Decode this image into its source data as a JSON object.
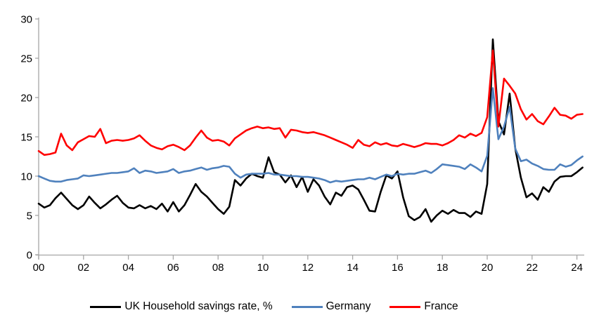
{
  "chart_data": {
    "type": "line",
    "title": "",
    "xlabel": "",
    "ylabel": "",
    "grid": false,
    "legend_position": "bottom",
    "axis_color": "#A6A6A6",
    "text_color": "#000000",
    "background_color": "#FFFFFF",
    "ylim": [
      0,
      30
    ],
    "y_ticks": [
      "0",
      "5",
      "10",
      "15",
      "20",
      "25",
      "30"
    ],
    "y_tick_values": [
      0,
      5,
      10,
      15,
      20,
      25,
      30
    ],
    "x_ticks": [
      "00",
      "02",
      "04",
      "06",
      "08",
      "10",
      "12",
      "14",
      "16",
      "18",
      "20",
      "22",
      "24"
    ],
    "x_tick_values": [
      2000,
      2002,
      2004,
      2006,
      2008,
      2010,
      2012,
      2014,
      2016,
      2018,
      2020,
      2022,
      2024
    ],
    "x_start": 2000.0,
    "x_step": 0.25,
    "x_end": 2024.25,
    "frequency": "quarterly",
    "series": [
      {
        "name": "UK Household savings rate, %",
        "color": "#000000",
        "stroke_width": 2.6,
        "values": [
          6.5,
          6.0,
          6.3,
          7.2,
          7.9,
          7.1,
          6.3,
          5.8,
          6.3,
          7.4,
          6.6,
          5.9,
          6.4,
          7.0,
          7.5,
          6.6,
          6.0,
          5.9,
          6.3,
          5.9,
          6.2,
          5.8,
          6.5,
          5.5,
          6.7,
          5.5,
          6.3,
          7.6,
          9.0,
          8.0,
          7.4,
          6.6,
          5.8,
          5.2,
          6.1,
          9.5,
          8.8,
          9.7,
          10.3,
          10.0,
          9.8,
          12.4,
          10.5,
          10.2,
          9.2,
          10.1,
          8.6,
          9.9,
          8.0,
          9.6,
          8.8,
          7.4,
          6.4,
          7.9,
          7.5,
          8.6,
          8.8,
          8.3,
          7.0,
          5.6,
          5.5,
          8.0,
          10.1,
          9.7,
          10.6,
          7.3,
          4.9,
          4.4,
          4.8,
          5.8,
          4.2,
          5.0,
          5.6,
          5.2,
          5.7,
          5.3,
          5.3,
          4.8,
          5.5,
          5.2,
          9.0,
          27.4,
          17.0,
          15.3,
          20.5,
          13.5,
          9.8,
          7.3,
          7.8,
          7.0,
          8.6,
          8.0,
          9.3,
          9.9,
          10.0,
          10.0,
          10.5,
          11.1
        ]
      },
      {
        "name": "Germany",
        "color": "#4F81BD",
        "stroke_width": 2.6,
        "values": [
          10.0,
          9.7,
          9.4,
          9.3,
          9.3,
          9.5,
          9.6,
          9.7,
          10.1,
          10.0,
          10.1,
          10.2,
          10.3,
          10.4,
          10.4,
          10.5,
          10.6,
          11.0,
          10.4,
          10.7,
          10.6,
          10.4,
          10.5,
          10.6,
          10.9,
          10.4,
          10.6,
          10.7,
          10.9,
          11.1,
          10.8,
          11.0,
          11.1,
          11.3,
          11.2,
          10.3,
          9.8,
          10.2,
          10.3,
          10.3,
          10.3,
          10.4,
          10.2,
          10.2,
          10.1,
          10.0,
          10.0,
          9.9,
          9.9,
          9.8,
          9.7,
          9.5,
          9.2,
          9.4,
          9.3,
          9.4,
          9.5,
          9.6,
          9.6,
          9.8,
          9.6,
          9.9,
          10.2,
          10.0,
          10.3,
          10.2,
          10.3,
          10.3,
          10.5,
          10.7,
          10.4,
          10.9,
          11.5,
          11.4,
          11.3,
          11.2,
          10.9,
          11.5,
          11.1,
          10.6,
          12.6,
          21.2,
          14.7,
          16.3,
          18.8,
          13.5,
          11.9,
          12.1,
          11.6,
          11.3,
          10.9,
          10.8,
          10.8,
          11.5,
          11.2,
          11.4,
          12.0,
          12.5
        ]
      },
      {
        "name": "France",
        "color": "#FF0000",
        "stroke_width": 2.6,
        "values": [
          13.2,
          12.7,
          12.8,
          13.0,
          15.4,
          13.9,
          13.3,
          14.3,
          14.7,
          15.1,
          15.0,
          16.0,
          14.2,
          14.5,
          14.6,
          14.5,
          14.6,
          14.8,
          15.2,
          14.5,
          13.9,
          13.6,
          13.4,
          13.8,
          14.0,
          13.7,
          13.3,
          13.9,
          14.9,
          15.8,
          14.9,
          14.5,
          14.6,
          14.4,
          13.9,
          14.8,
          15.3,
          15.8,
          16.1,
          16.3,
          16.1,
          16.2,
          16.0,
          16.1,
          14.9,
          15.9,
          15.8,
          15.6,
          15.5,
          15.6,
          15.4,
          15.2,
          14.9,
          14.6,
          14.3,
          14.0,
          13.6,
          14.6,
          14.0,
          13.8,
          14.3,
          14.0,
          14.2,
          13.9,
          13.8,
          14.1,
          13.9,
          13.7,
          13.9,
          14.2,
          14.1,
          14.1,
          13.9,
          14.2,
          14.6,
          15.2,
          14.9,
          15.4,
          15.1,
          15.5,
          17.5,
          26.0,
          16.3,
          22.4,
          21.5,
          20.5,
          18.5,
          17.2,
          17.9,
          17.0,
          16.6,
          17.6,
          18.7,
          17.8,
          17.7,
          17.3,
          17.8,
          17.9
        ]
      }
    ],
    "legend": [
      {
        "label": "UK Household savings rate, %",
        "color": "#000000"
      },
      {
        "label": "Germany",
        "color": "#4F81BD"
      },
      {
        "label": "France",
        "color": "#FF0000"
      }
    ]
  }
}
